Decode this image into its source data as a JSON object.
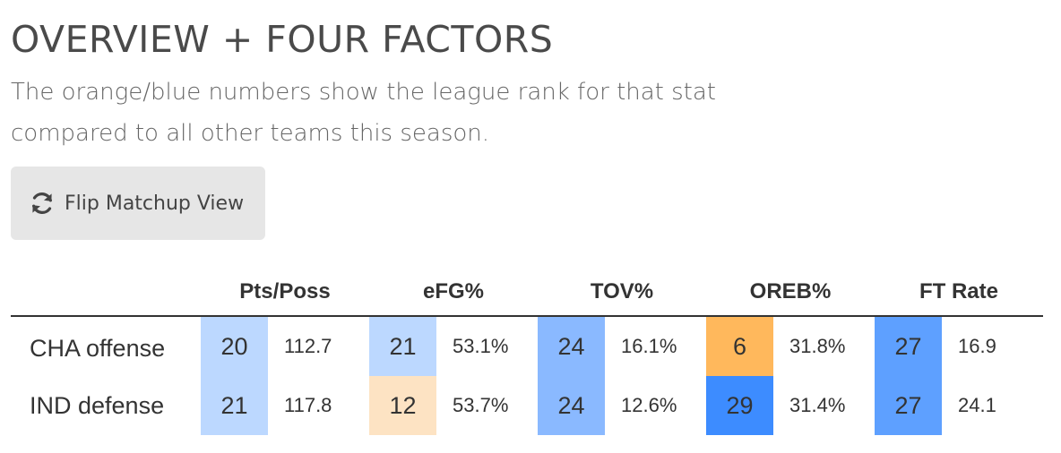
{
  "header": {
    "title": "OVERVIEW + FOUR FACTORS",
    "subtitle": "The orange/blue numbers show the league rank for that stat compared to all other teams this season."
  },
  "flip_button": {
    "label": "Flip Matchup View",
    "icon": "refresh-icon"
  },
  "table": {
    "columns": [
      "Pts/Poss",
      "eFG%",
      "TOV%",
      "OREB%",
      "FT Rate"
    ],
    "rows": [
      {
        "label": "CHA offense",
        "cells": [
          {
            "rank": "20",
            "value": "112.7",
            "color": "#bcd8ff"
          },
          {
            "rank": "21",
            "value": "53.1%",
            "color": "#bcd8ff"
          },
          {
            "rank": "24",
            "value": "16.1%",
            "color": "#8ab9ff"
          },
          {
            "rank": "6",
            "value": "31.8%",
            "color": "#ffb85c"
          },
          {
            "rank": "27",
            "value": "16.9",
            "color": "#5ea0ff"
          }
        ]
      },
      {
        "label": "IND defense",
        "cells": [
          {
            "rank": "21",
            "value": "117.8",
            "color": "#bcd8ff"
          },
          {
            "rank": "12",
            "value": "53.7%",
            "color": "#fde3c3"
          },
          {
            "rank": "24",
            "value": "12.6%",
            "color": "#8ab9ff"
          },
          {
            "rank": "29",
            "value": "31.4%",
            "color": "#3d8cff"
          },
          {
            "rank": "27",
            "value": "24.1",
            "color": "#5ea0ff"
          }
        ]
      }
    ]
  }
}
